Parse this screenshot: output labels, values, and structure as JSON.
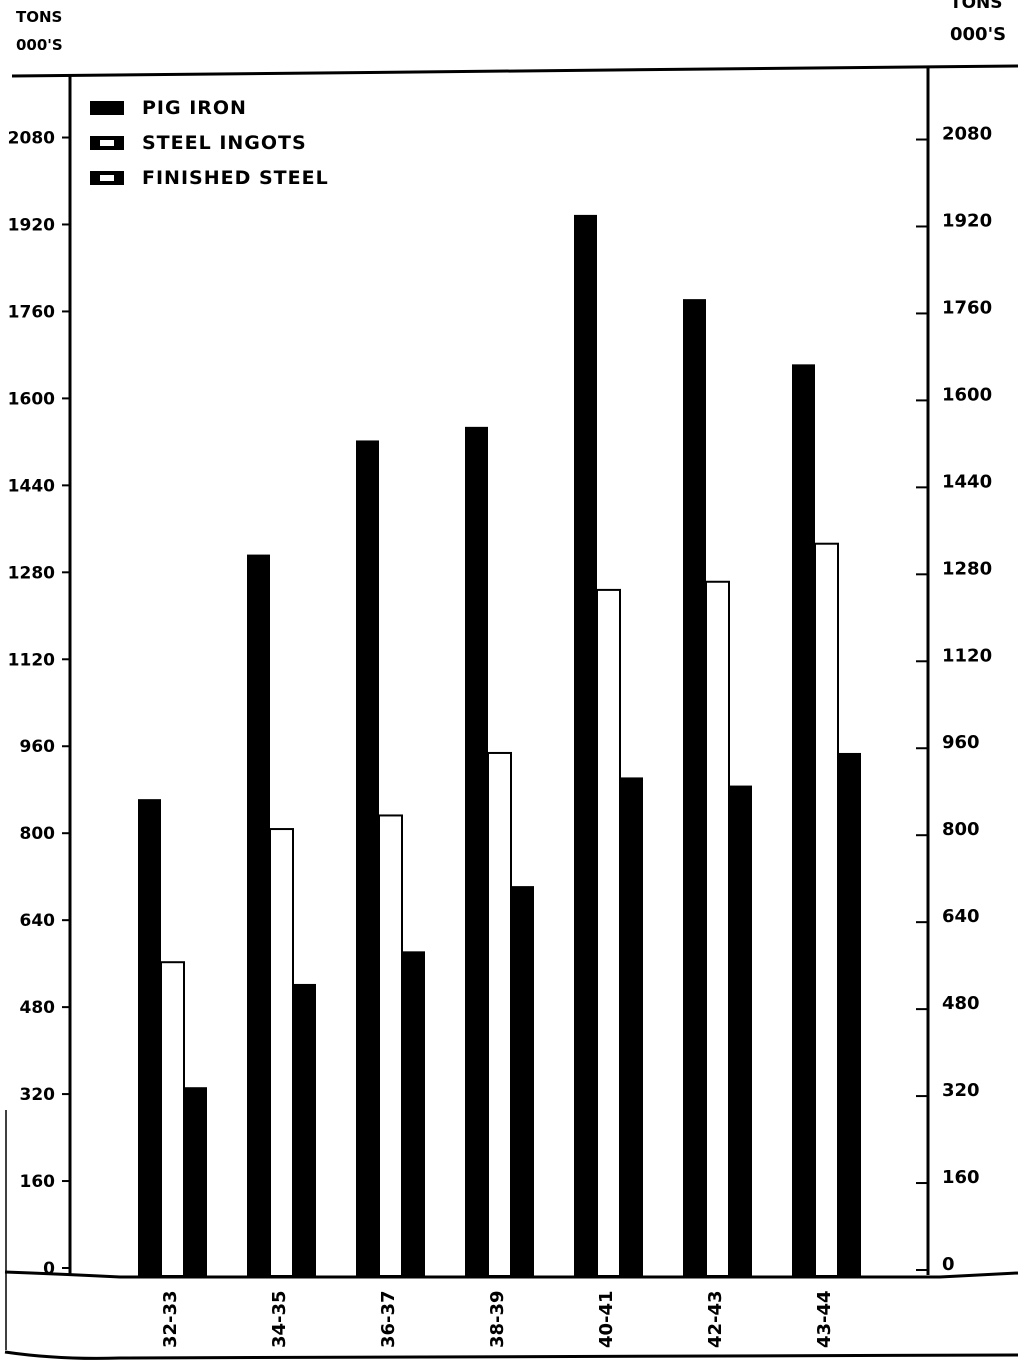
{
  "chart_data": {
    "type": "bar",
    "title": "",
    "left_axis_label": [
      "TONS",
      "000'S"
    ],
    "right_axis_label": [
      "TONS",
      "000'S"
    ],
    "ylim": [
      0,
      2240
    ],
    "yticks": [
      0,
      160,
      320,
      480,
      640,
      800,
      960,
      1120,
      1280,
      1440,
      1600,
      1760,
      1920,
      2080
    ],
    "ytick_labels_left": [
      "0",
      "160",
      "320",
      "480",
      "640",
      "800",
      "960",
      "1120",
      "1280",
      "1440",
      "1600",
      "1760",
      "1920",
      "2080"
    ],
    "ytick_labels_right": [
      "0",
      "160",
      "320",
      "480",
      "640",
      "800",
      "960",
      "1120",
      "1280",
      "1440",
      "1600",
      "1760",
      "1920",
      "2080"
    ],
    "categories": [
      "32-33",
      "34-35",
      "36-37",
      "38-39",
      "40-41",
      "42-43",
      "43-44"
    ],
    "legend_position": "top-left",
    "series": [
      {
        "name": "PIG IRON",
        "fill": "#000000",
        "values": [
          870,
          1320,
          1530,
          1555,
          1945,
          1790,
          1670
        ]
      },
      {
        "name": "STEEL INGOTS",
        "fill": "#ffffff",
        "values": [
          570,
          815,
          840,
          955,
          1255,
          1270,
          1340
        ]
      },
      {
        "name": "FINISHED STEEL",
        "fill": "#000000",
        "values": [
          340,
          530,
          590,
          710,
          910,
          895,
          955
        ]
      }
    ]
  }
}
